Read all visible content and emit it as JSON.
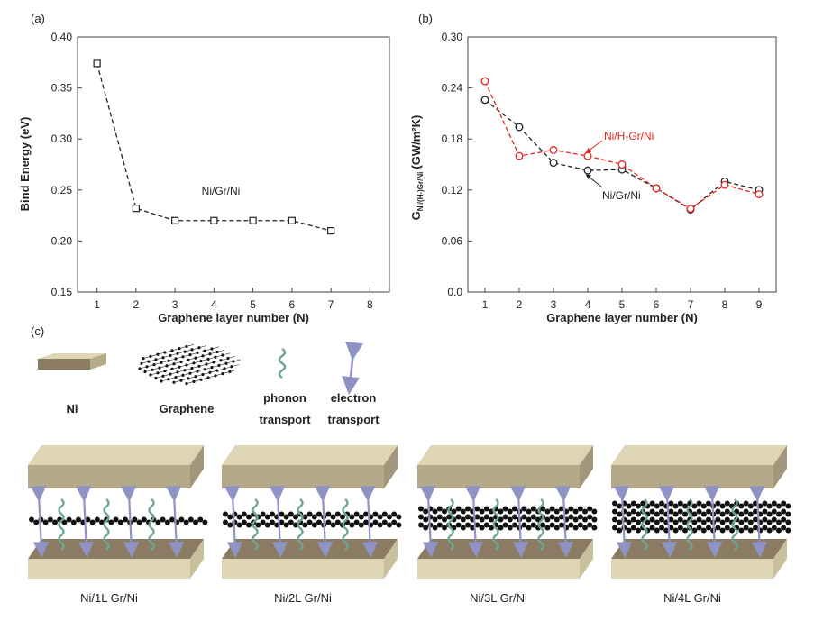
{
  "chart_data": [
    {
      "panel_label": "(a)",
      "type": "line",
      "xlabel": "Graphene layer number (N)",
      "ylabel": "Bind Energy (eV)",
      "xlim": [
        0.5,
        8.5
      ],
      "ylim": [
        0.15,
        0.4
      ],
      "xticks": [
        1,
        2,
        3,
        4,
        5,
        6,
        7,
        8
      ],
      "yticks": [
        "0.15",
        "0.20",
        "0.25",
        "0.30",
        "0.35",
        "0.40"
      ],
      "grid": false,
      "series": [
        {
          "name": "Ni/Gr/Ni",
          "color": "#222222",
          "marker": "square",
          "x": [
            1,
            2,
            3,
            4,
            5,
            6,
            7
          ],
          "y": [
            0.374,
            0.232,
            0.22,
            0.22,
            0.22,
            0.22,
            0.21
          ]
        }
      ]
    },
    {
      "panel_label": "(b)",
      "type": "line",
      "xlabel": "Graphene layer number (N)",
      "ylabel_main": "G",
      "ylabel_sub": "Ni/(H-)Gr/Ni",
      "ylabel_unit": "(GW/m²K)",
      "xlim": [
        0.5,
        9.5
      ],
      "ylim": [
        0.0,
        0.3
      ],
      "xticks": [
        1,
        2,
        3,
        4,
        5,
        6,
        7,
        8,
        9
      ],
      "yticks": [
        "0.0",
        "0.06",
        "0.12",
        "0.18",
        "0.24",
        "0.30"
      ],
      "grid": false,
      "series": [
        {
          "name": "Ni/Gr/Ni",
          "color": "#222222",
          "marker": "circle",
          "x": [
            1,
            2,
            3,
            4,
            5,
            6,
            7,
            8,
            9
          ],
          "y": [
            0.226,
            0.194,
            0.152,
            0.143,
            0.144,
            0.122,
            0.097,
            0.13,
            0.12
          ]
        },
        {
          "name": "Ni/H-Gr/Ni",
          "color": "#e8231f",
          "marker": "circle",
          "x": [
            1,
            2,
            3,
            4,
            5,
            6,
            7,
            8,
            9
          ],
          "y": [
            0.248,
            0.16,
            0.167,
            0.16,
            0.15,
            0.122,
            0.098,
            0.126,
            0.115
          ]
        }
      ]
    }
  ],
  "panel_c": {
    "label": "(c)",
    "legend": {
      "ni": "Ni",
      "graphene": "Graphene",
      "phonon": [
        "phonon",
        "transport"
      ],
      "electron": [
        "electron",
        "transport"
      ]
    },
    "structures": [
      {
        "caption": "Ni/1L Gr/Ni",
        "layers": 1
      },
      {
        "caption": "Ni/2L Gr/Ni",
        "layers": 2
      },
      {
        "caption": "Ni/3L Gr/Ni",
        "layers": 3
      },
      {
        "caption": "Ni/4L Gr/Ni",
        "layers": 4
      }
    ]
  },
  "colors": {
    "ni_top": "#b6a98a",
    "ni_front": "#8c7b63",
    "ni_side": "#ddd5b4",
    "phonon": "#6fa596",
    "electron": "#8e93c4",
    "graphene": "#111111"
  }
}
